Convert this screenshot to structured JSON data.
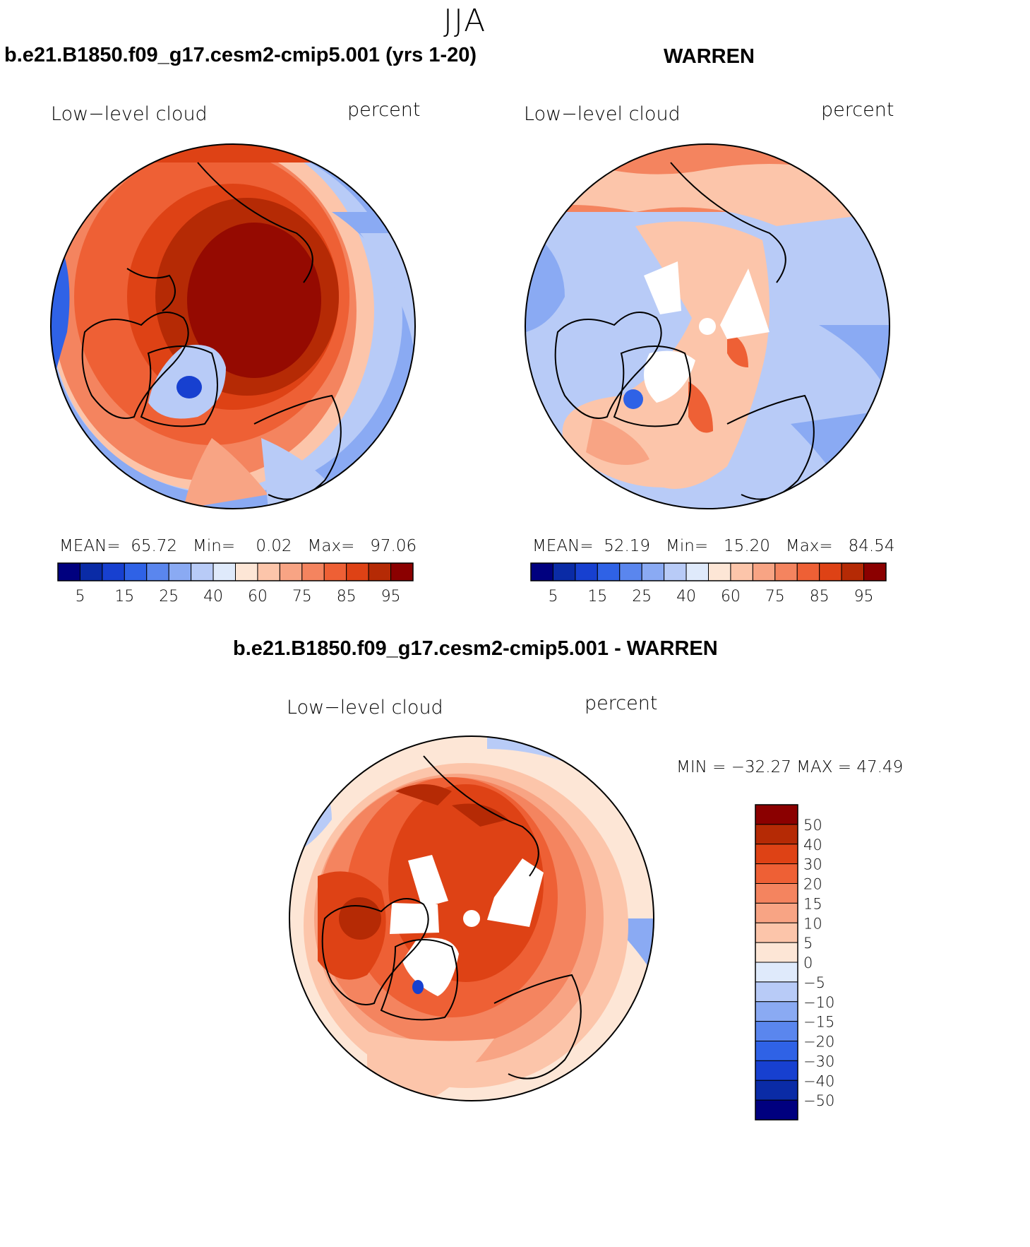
{
  "figure": {
    "season": "JJA",
    "variable": "Low−level cloud",
    "units": "percent"
  },
  "panels": [
    {
      "title": "b.e21.B1850.f09_g17.cesm2-cmip5.001 (yrs 1-20)",
      "mean_label": "MEAN=",
      "mean": "65.72",
      "min_label": "Min=",
      "min": "0.02",
      "max_label": "Max=",
      "max": "97.06"
    },
    {
      "title": "WARREN",
      "mean_label": "MEAN=",
      "mean": "52.19",
      "min_label": "Min=",
      "min": "15.20",
      "max_label": "Max=",
      "max": "84.54"
    },
    {
      "title": "b.e21.B1850.f09_g17.cesm2-cmip5.001 - WARREN",
      "minmax": "MIN = −32.27  MAX =   47.49"
    }
  ],
  "colorbar_h": {
    "colors": [
      "#00007f",
      "#0a2ba6",
      "#1740d0",
      "#2f62e6",
      "#5a86ee",
      "#8aaaf3",
      "#b8cbf7",
      "#dfeafb",
      "#fde6d6",
      "#fcc5aa",
      "#f8a484",
      "#f4845f",
      "#ee6035",
      "#de4215",
      "#b52a05",
      "#8b0000"
    ],
    "labels": [
      "5",
      "15",
      "25",
      "40",
      "60",
      "75",
      "85",
      "95"
    ]
  },
  "colorbar_v": {
    "colors": [
      "#8b0000",
      "#b52a05",
      "#de4215",
      "#ee6035",
      "#f4845f",
      "#f8a484",
      "#fcc5aa",
      "#fde6d6",
      "#dfeafb",
      "#b8cbf7",
      "#8aaaf3",
      "#5a86ee",
      "#2f62e6",
      "#1740d0",
      "#0a2ba6",
      "#00007f"
    ],
    "labels": [
      "50",
      "40",
      "30",
      "20",
      "15",
      "10",
      "5",
      "0",
      "−5",
      "−10",
      "−15",
      "−20",
      "−30",
      "−40",
      "−50"
    ]
  },
  "palette": {
    "dark_red": "#8b0000",
    "red": "#de4215",
    "orange": "#f4845f",
    "salmon": "#f8a484",
    "peach": "#fcc5aa",
    "cream": "#fde6d6",
    "pale_blue": "#dfeafb",
    "light_blue": "#b8cbf7",
    "blue": "#5a86ee",
    "deep_blue": "#1740d0"
  }
}
